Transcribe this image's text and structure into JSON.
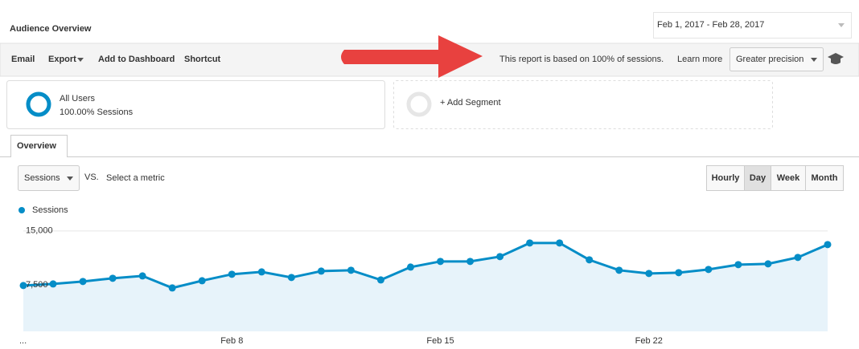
{
  "header": {
    "title": "Audience Overview",
    "date_range": "Feb 1, 2017 - Feb 28, 2017"
  },
  "toolbar": {
    "items": [
      "Email",
      "Export",
      "Add to Dashboard",
      "Shortcut"
    ],
    "notice": "This report is based on 100% of sessions.",
    "learn_more": "Learn more",
    "precision": "Greater precision"
  },
  "segments": {
    "active": {
      "name": "All Users",
      "detail": "100.00% Sessions"
    },
    "add": "+ Add Segment"
  },
  "tabs": [
    "Overview"
  ],
  "controls": {
    "metric": "Sessions",
    "vs": "VS.",
    "select_metric": "Select a metric",
    "granularity": [
      "Hourly",
      "Day",
      "Week",
      "Month"
    ],
    "selected_index": 1
  },
  "chart_data": {
    "type": "line",
    "categories": [
      "...",
      null,
      null,
      null,
      null,
      null,
      null,
      "Feb 8",
      null,
      null,
      null,
      null,
      null,
      null,
      "Feb 15",
      null,
      null,
      null,
      null,
      null,
      null,
      "Feb 22",
      null,
      null,
      null,
      null,
      null,
      null
    ],
    "series": [
      {
        "name": "Sessions",
        "color": "#058dc7",
        "values": [
          7390,
          7610,
          7950,
          8400,
          8730,
          7050,
          8060,
          8960,
          9290,
          8510,
          9400,
          9520,
          8170,
          9960,
          10750,
          10750,
          11420,
          13320,
          13320,
          10970,
          9520,
          9070,
          9180,
          9630,
          10300,
          10410,
          11310,
          13100
        ]
      }
    ],
    "ylim": [
      1000,
      16100
    ],
    "yticks": [
      {
        "value": 7500,
        "label": "7,500"
      },
      {
        "value": 15000,
        "label": "15,000"
      }
    ],
    "grid": true,
    "area_fill": "#e7f3fa"
  }
}
